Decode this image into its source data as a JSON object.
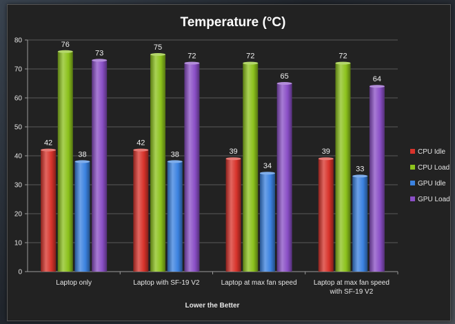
{
  "chart_data": {
    "type": "bar",
    "title": "Temperature (°C)",
    "xlabel": "Lower the Better",
    "ylabel": "",
    "ylim": [
      0,
      80
    ],
    "yticks": [
      0,
      10,
      20,
      30,
      40,
      50,
      60,
      70,
      80
    ],
    "categories": [
      [
        "Laptop only"
      ],
      [
        "Laptop with SF-19 V2"
      ],
      [
        "Laptop at max fan speed"
      ],
      [
        "Laptop at max fan speed",
        "with SF-19 V2"
      ]
    ],
    "series": [
      {
        "name": "CPU Idle",
        "color": "#d8332b",
        "values": [
          42,
          42,
          39,
          39
        ]
      },
      {
        "name": "CPU Load",
        "color": "#8cc21c",
        "values": [
          76,
          75,
          72,
          72
        ]
      },
      {
        "name": "GPU Idle",
        "color": "#3b82e0",
        "values": [
          38,
          38,
          34,
          33
        ]
      },
      {
        "name": "GPU Load",
        "color": "#8a4fc6",
        "values": [
          73,
          72,
          65,
          64
        ]
      }
    ],
    "legend_position": "right"
  }
}
